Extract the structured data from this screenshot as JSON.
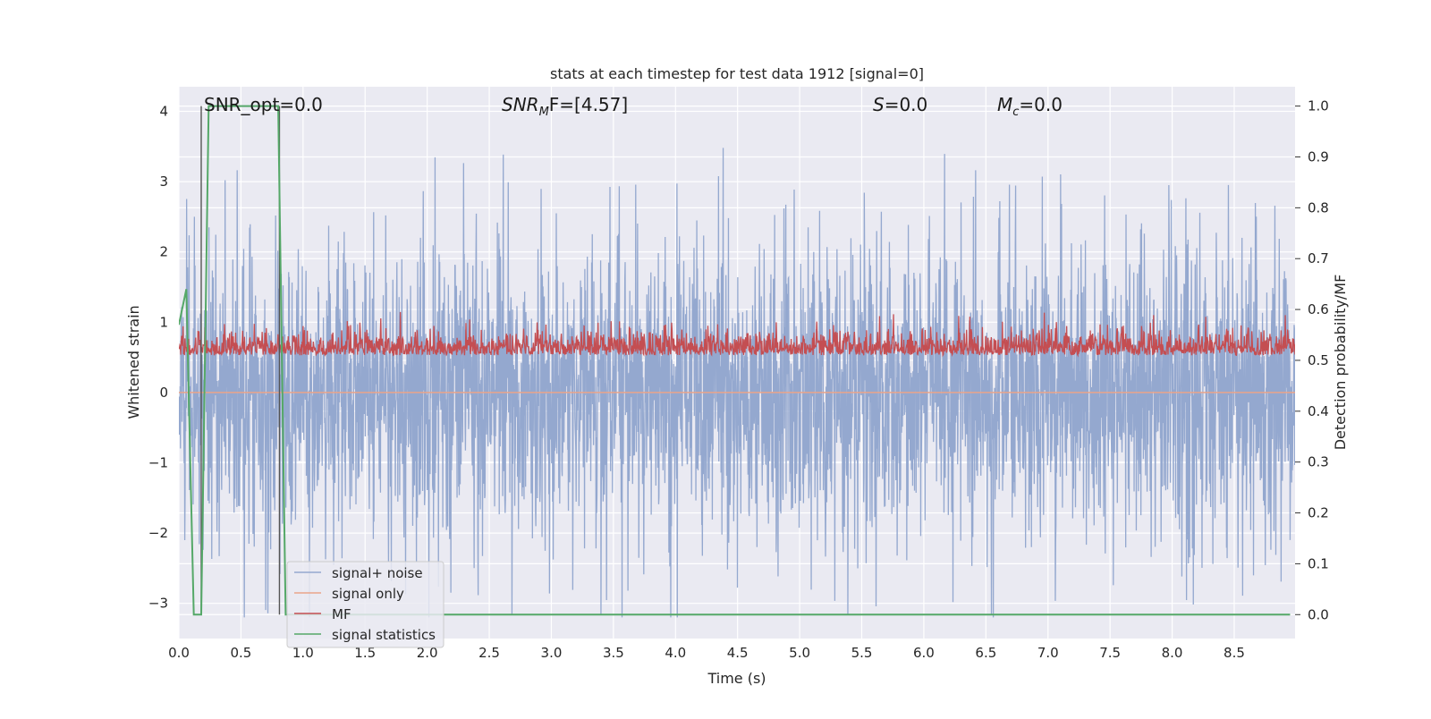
{
  "chart_data": {
    "type": "line",
    "title": "stats at each timestep for test data 1912 [signal=0]",
    "xlabel": "Time (s)",
    "ylabel": "Whitened strain",
    "ylabel_right": "Detection probability/MF",
    "xlim": [
      0.0,
      8.99
    ],
    "ylim": [
      -3.5,
      4.35
    ],
    "ylim_right": [
      -0.047,
      1.038
    ],
    "x_ticks": [
      "0.0",
      "0.5",
      "1.0",
      "1.5",
      "2.0",
      "2.5",
      "3.0",
      "3.5",
      "4.0",
      "4.5",
      "5.0",
      "5.5",
      "6.0",
      "6.5",
      "7.0",
      "7.5",
      "8.0",
      "8.5"
    ],
    "y_ticks": [
      "4",
      "3",
      "2",
      "1",
      "0",
      "−1",
      "−2",
      "−3"
    ],
    "y_ticks_right": [
      "1.0",
      "0.9",
      "0.8",
      "0.7",
      "0.6",
      "0.5",
      "0.4",
      "0.3",
      "0.2",
      "0.1",
      "0.0"
    ],
    "grid": true,
    "legend_position": "lower-left",
    "annotations": {
      "snr_opt": "SNR_opt=0.0",
      "snr_mf_base": "SNR",
      "snr_mf_sub": "M",
      "snr_mf_tail": "F=[4.57]",
      "s_sym": "S",
      "s_val": "=0.0",
      "mc_sym": "M",
      "mc_sub": "c",
      "mc_val": "=0.0"
    },
    "series": [
      {
        "name": "signal+ noise",
        "color": "#94a8cf",
        "approx_range": [
          -3.2,
          4.0
        ],
        "typical_abs_max": 2.3
      },
      {
        "name": "signal only",
        "color": "#e9a48a",
        "values_constant": 0.0
      },
      {
        "name": "MF",
        "color": "#c44e52",
        "axis": "right",
        "approx_range": [
          0.5,
          0.61
        ]
      },
      {
        "name": "signal statistics",
        "color": "#55a868",
        "axis": "right",
        "x": [
          0.0,
          0.06,
          0.12,
          0.18,
          0.24,
          0.8,
          0.86,
          0.92,
          8.95
        ],
        "values": [
          0.57,
          0.64,
          0.0,
          0.0,
          1.0,
          1.0,
          0.0,
          0.0,
          0.0
        ]
      }
    ],
    "vlines_x": [
      0.18,
      0.81
    ],
    "colors": {
      "background": "#eaeaf2",
      "grid": "#ffffff",
      "vline": "#555555"
    }
  }
}
